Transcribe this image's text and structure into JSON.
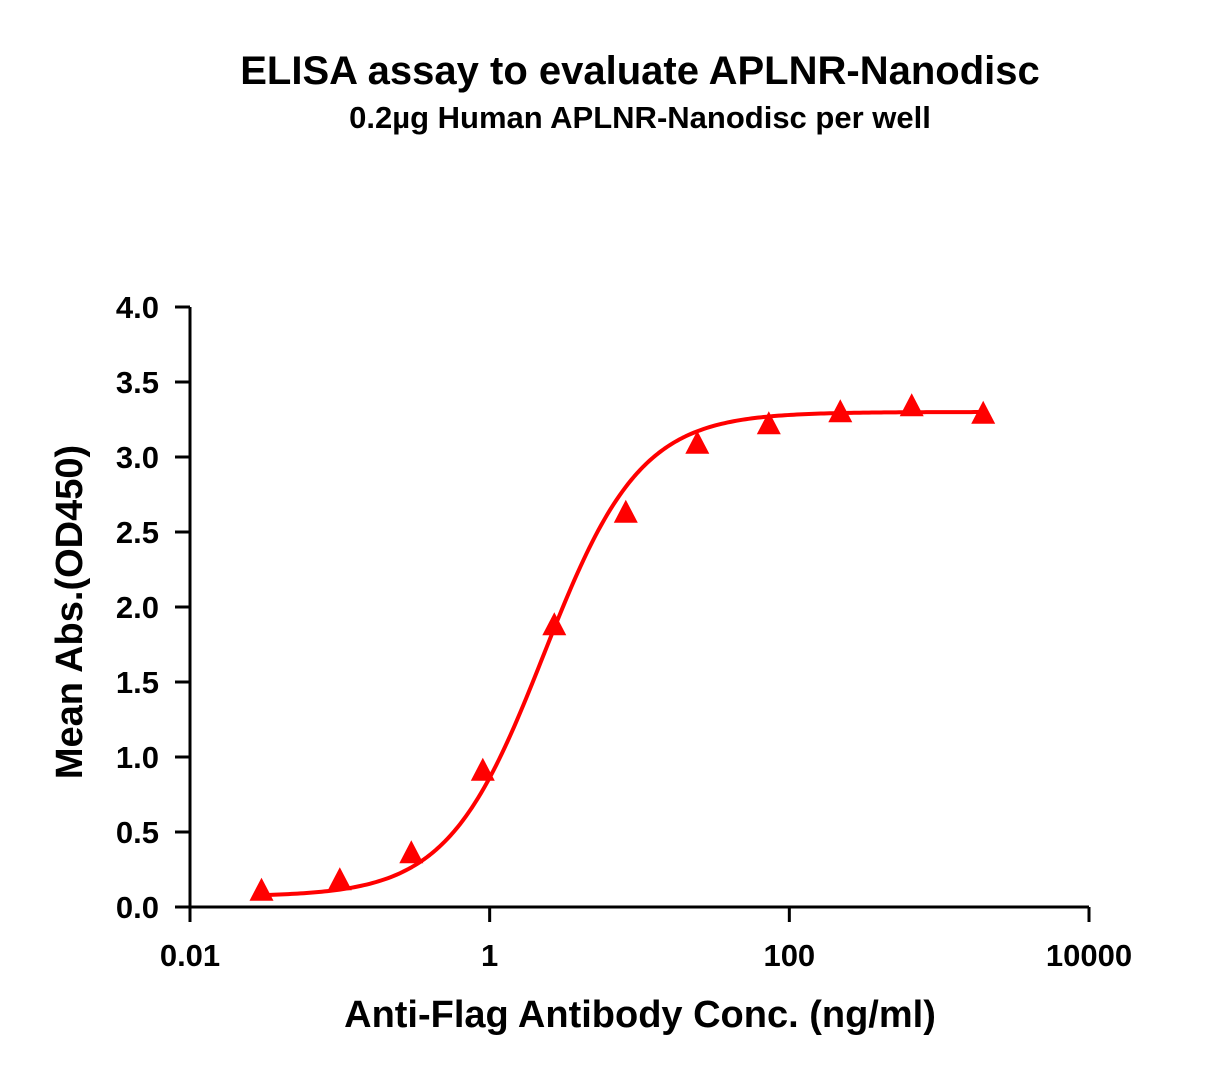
{
  "chart_data": {
    "type": "scatter",
    "title": "ELISA assay to evaluate APLNR-Nanodisc",
    "subtitle": "0.2µg Human APLNR-Nanodisc per well",
    "xlabel": "Anti-Flag Antibody Conc. (ng/ml)",
    "ylabel": "Mean Abs.(OD450)",
    "x_scale": "log",
    "xlim": [
      0.01,
      10000
    ],
    "ylim": [
      0.0,
      4.0
    ],
    "x_ticks": [
      0.01,
      1,
      100,
      10000
    ],
    "x_tick_labels": [
      "0.01",
      "1",
      "100",
      "10000"
    ],
    "y_ticks": [
      0.0,
      0.5,
      1.0,
      1.5,
      2.0,
      2.5,
      3.0,
      3.5,
      4.0
    ],
    "y_tick_labels": [
      "0.0",
      "0.5",
      "1.0",
      "1.5",
      "2.0",
      "2.5",
      "3.0",
      "3.5",
      "4.0"
    ],
    "grid": false,
    "legend": "none",
    "color": "#ff0000",
    "marker": "triangle",
    "series": [
      {
        "x": [
          0.03,
          0.1,
          0.3,
          0.9,
          2.7,
          8.1,
          24.3,
          72.9,
          218.7,
          656.1,
          1968.3
        ],
        "y": [
          0.1,
          0.17,
          0.35,
          0.9,
          1.87,
          2.62,
          3.08,
          3.21,
          3.29,
          3.33,
          3.28
        ],
        "fit": "four-parameter logistic"
      }
    ],
    "fit_curve": {
      "bottom": 0.07,
      "top": 3.3,
      "ec50": 2.3,
      "hill": 1.35
    }
  }
}
